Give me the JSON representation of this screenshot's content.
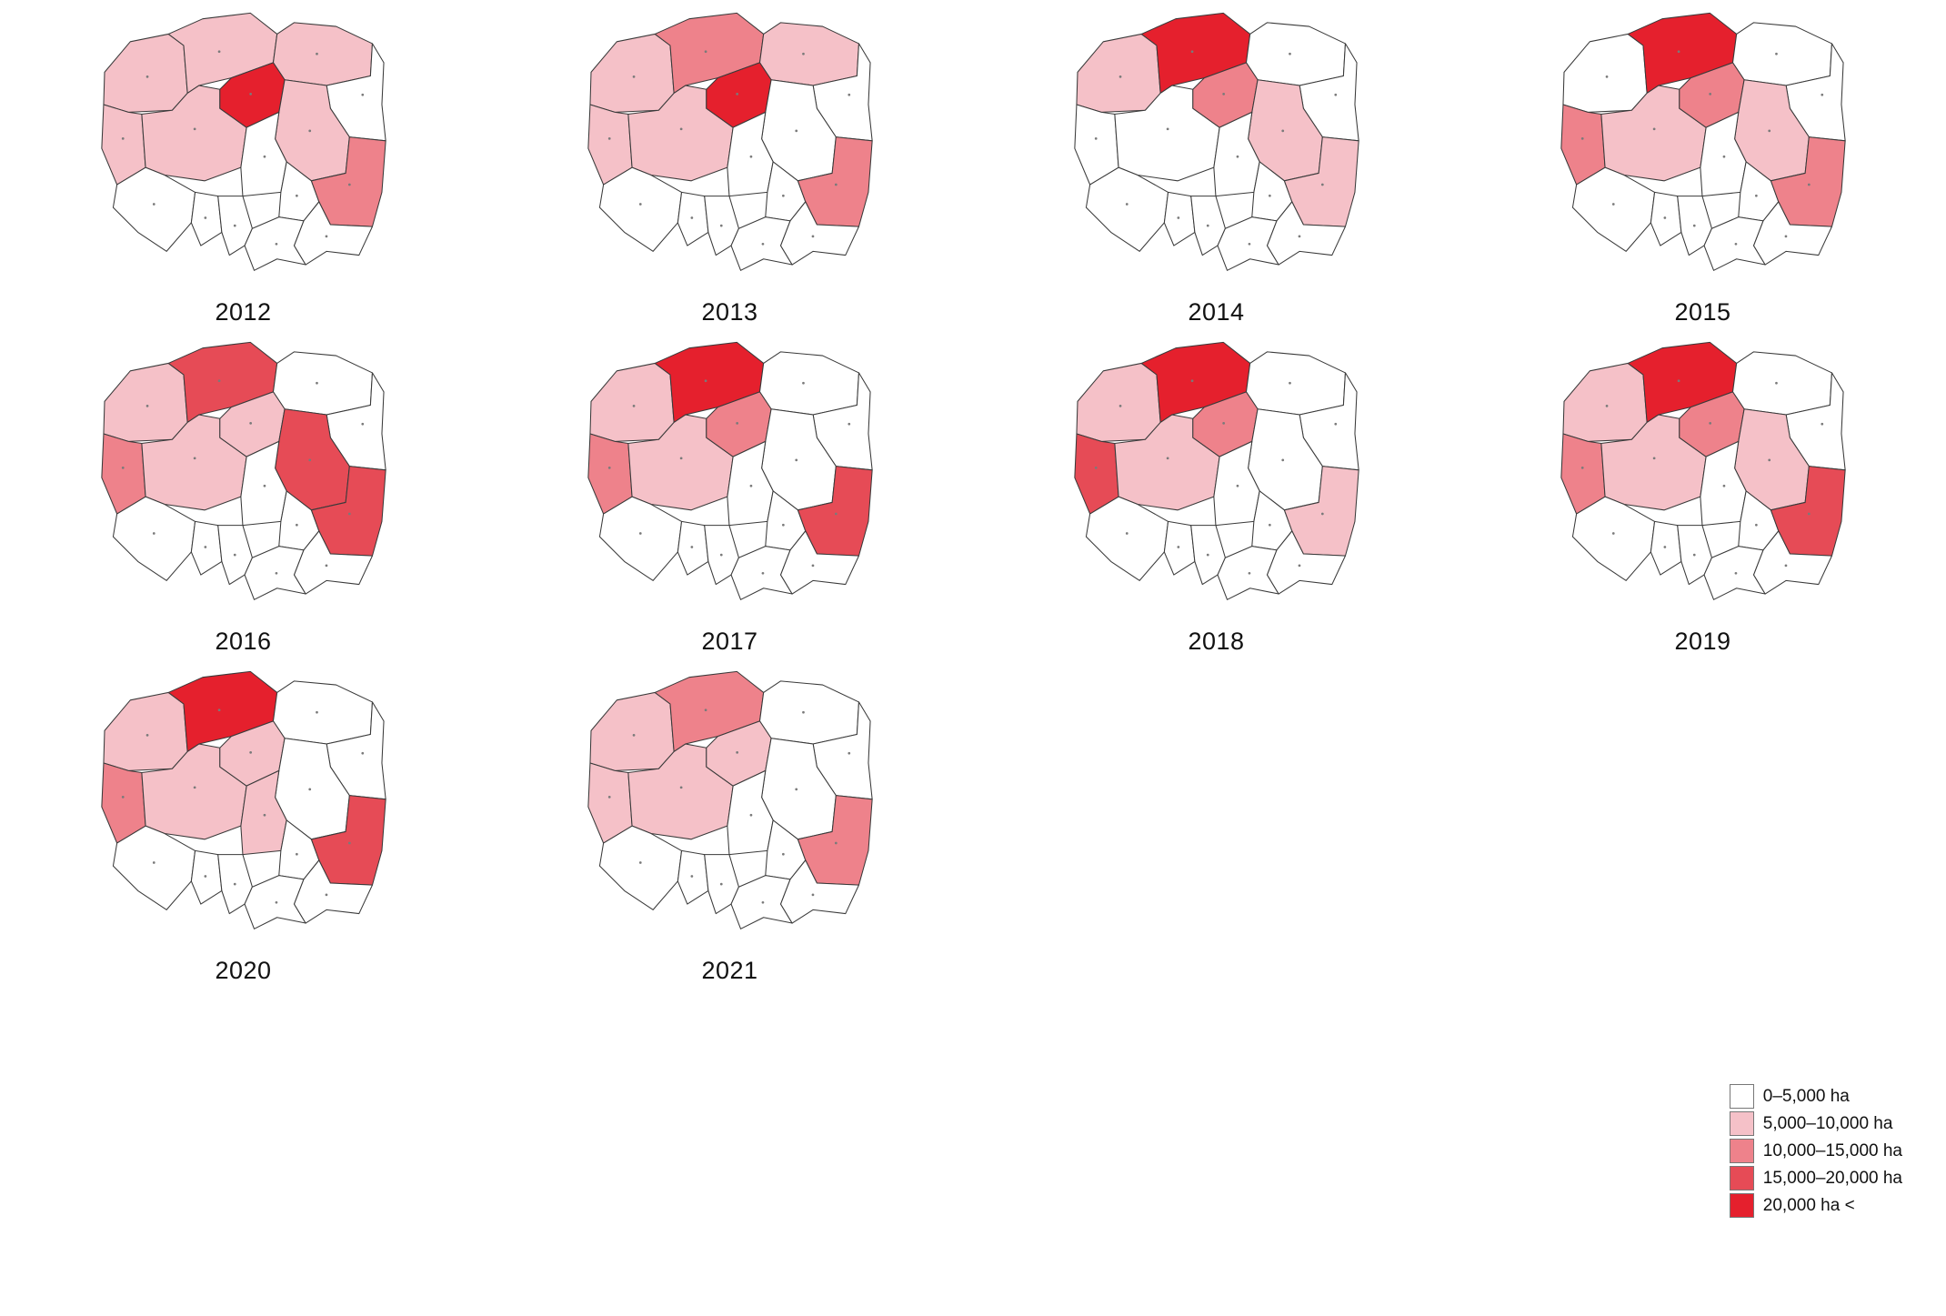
{
  "figure": {
    "background": "#ffffff",
    "kind": "choropleth-small-multiples"
  },
  "colors": {
    "levels": {
      "c0": "#ffffff",
      "c1": "#f5c1c8",
      "c2": "#ee828b",
      "c3": "#e64b56",
      "c4": "#e5202d"
    },
    "border": "#3a3a3a"
  },
  "regions": [
    {
      "id": "zachodniopomorskie"
    },
    {
      "id": "pomorskie"
    },
    {
      "id": "warminsko_mazurskie"
    },
    {
      "id": "podlaskie"
    },
    {
      "id": "lubuskie"
    },
    {
      "id": "wielkopolskie"
    },
    {
      "id": "kujawsko_pomorskie"
    },
    {
      "id": "mazowieckie"
    },
    {
      "id": "lodzkie"
    },
    {
      "id": "swietokrzyskie"
    },
    {
      "id": "lubelskie"
    },
    {
      "id": "dolnoslaskie"
    },
    {
      "id": "opolskie"
    },
    {
      "id": "slaskie"
    },
    {
      "id": "malopolskie"
    },
    {
      "id": "podkarpackie"
    }
  ],
  "years": [
    {
      "label": "2012",
      "levels": {
        "zachodniopomorskie": 1,
        "pomorskie": 1,
        "warminsko_mazurskie": 1,
        "kujawsko_pomorskie": 4,
        "lubuskie": 1,
        "wielkopolskie": 1,
        "mazowieckie": 1,
        "lubelskie": 2
      }
    },
    {
      "label": "2013",
      "levels": {
        "zachodniopomorskie": 1,
        "pomorskie": 2,
        "warminsko_mazurskie": 1,
        "kujawsko_pomorskie": 4,
        "lubuskie": 1,
        "wielkopolskie": 1,
        "lubelskie": 2
      }
    },
    {
      "label": "2014",
      "levels": {
        "zachodniopomorskie": 1,
        "pomorskie": 4,
        "kujawsko_pomorskie": 2,
        "mazowieckie": 1,
        "lubelskie": 1
      }
    },
    {
      "label": "2015",
      "levels": {
        "pomorskie": 4,
        "kujawsko_pomorskie": 2,
        "lubuskie": 2,
        "wielkopolskie": 1,
        "mazowieckie": 1,
        "lubelskie": 2
      }
    },
    {
      "label": "2016",
      "levels": {
        "zachodniopomorskie": 1,
        "pomorskie": 3,
        "kujawsko_pomorskie": 1,
        "lubuskie": 2,
        "wielkopolskie": 1,
        "mazowieckie": 3,
        "lubelskie": 3
      }
    },
    {
      "label": "2017",
      "levels": {
        "zachodniopomorskie": 1,
        "pomorskie": 4,
        "kujawsko_pomorskie": 2,
        "lubuskie": 2,
        "wielkopolskie": 1,
        "lubelskie": 3
      }
    },
    {
      "label": "2018",
      "levels": {
        "zachodniopomorskie": 1,
        "pomorskie": 4,
        "kujawsko_pomorskie": 2,
        "lubuskie": 3,
        "wielkopolskie": 1,
        "lubelskie": 1
      }
    },
    {
      "label": "2019",
      "levels": {
        "zachodniopomorskie": 1,
        "pomorskie": 4,
        "kujawsko_pomorskie": 2,
        "lubuskie": 2,
        "wielkopolskie": 1,
        "mazowieckie": 1,
        "lubelskie": 3
      }
    },
    {
      "label": "2020",
      "levels": {
        "zachodniopomorskie": 1,
        "pomorskie": 4,
        "kujawsko_pomorskie": 1,
        "lubuskie": 2,
        "wielkopolskie": 1,
        "lodzkie": 1,
        "lubelskie": 3
      }
    },
    {
      "label": "2021",
      "levels": {
        "zachodniopomorskie": 1,
        "pomorskie": 2,
        "kujawsko_pomorskie": 1,
        "lubuskie": 1,
        "wielkopolskie": 1,
        "lubelskie": 2
      }
    }
  ],
  "legend": {
    "items": [
      {
        "label": "0–5,000 ha",
        "level": 0
      },
      {
        "label": "5,000–10,000 ha",
        "level": 1
      },
      {
        "label": "10,000–15,000 ha",
        "level": 2
      },
      {
        "label": "15,000–20,000 ha",
        "level": 3
      },
      {
        "label": "20,000 ha <",
        "level": 4
      }
    ]
  }
}
